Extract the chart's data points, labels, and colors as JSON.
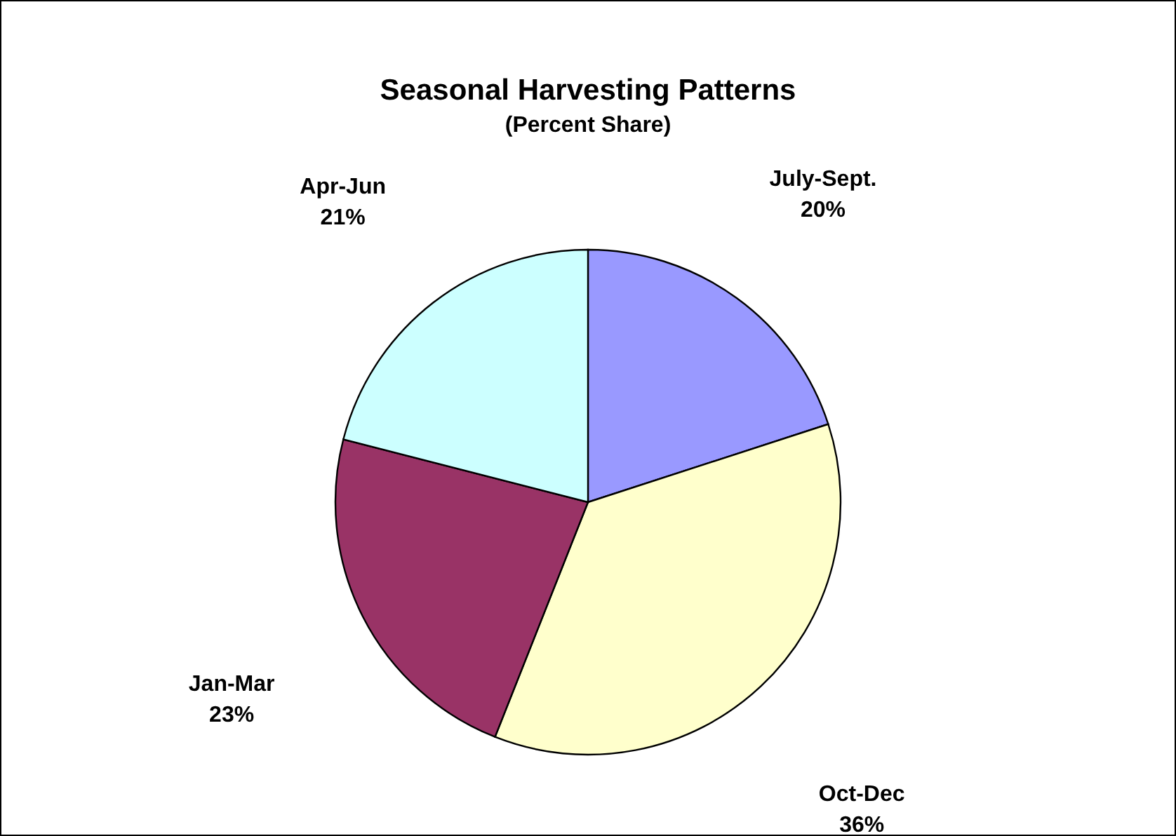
{
  "chart_data": {
    "type": "pie",
    "title": "Seasonal Harvesting Patterns",
    "subtitle": "(Percent Share)",
    "categories": [
      "July-Sept.",
      "Oct-Dec",
      "Jan-Mar",
      "Apr-Jun"
    ],
    "values": [
      20,
      36,
      23,
      21
    ],
    "value_labels": [
      "20%",
      "36%",
      "23%",
      "21%"
    ],
    "colors": [
      "#9999ff",
      "#ffffcc",
      "#993366",
      "#ccffff"
    ],
    "legend": false
  }
}
